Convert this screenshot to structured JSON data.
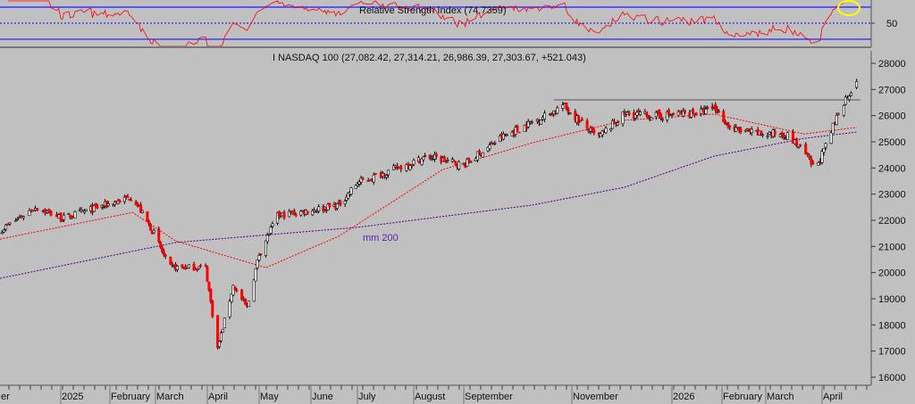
{
  "rsi_panel": {
    "title": "Relative Strength Index (74.7359)",
    "value": 74.7359,
    "levels": [
      70,
      50,
      30
    ],
    "axis_label": "50",
    "highlight_color": "#ffff00"
  },
  "chart_data": {
    "type": "candlestick",
    "title": "I NASDAQ 100 (27,082.42, 27,314.21, 26,986.39, 27,303.67, +521.043)",
    "last": {
      "open": 27082.42,
      "high": 27314.21,
      "low": 26986.39,
      "close": 27303.67,
      "change": 521.043
    },
    "ylim": [
      15700,
      28400
    ],
    "y_ticks": [
      "28000",
      "27000",
      "26000",
      "25000",
      "24000",
      "23000",
      "22000",
      "21000",
      "20000",
      "19000",
      "18000",
      "17000",
      "16000"
    ],
    "x_tick_labels": [
      "er",
      "2025",
      "February",
      "March",
      "April",
      "May",
      "June",
      "July",
      "August",
      "September",
      "November",
      "2026",
      "February",
      "March",
      "April"
    ],
    "grid": false,
    "colors": {
      "down": "#ff0000",
      "up": "#ffffff",
      "wick": "#000000",
      "ma_short": "#ff0000",
      "ma_long": "#4b0082",
      "rsi": "#ff0000",
      "levels": "#0000ff"
    },
    "close_path": [
      [
        "2024-12-01",
        21600
      ],
      [
        "2024-12-19",
        22500
      ],
      [
        "2025-01-02",
        22070
      ],
      [
        "2025-02-15",
        22900
      ],
      [
        "2025-03-01",
        21400
      ],
      [
        "2025-03-09",
        20200
      ],
      [
        "2025-03-31",
        20200
      ],
      [
        "2025-04-07",
        17100
      ],
      [
        "2025-04-16",
        19500
      ],
      [
        "2025-04-24",
        18650
      ],
      [
        "2025-05-01",
        20700
      ],
      [
        "2025-05-12",
        22170
      ],
      [
        "2025-06-19",
        22580
      ],
      [
        "2025-07-01",
        23430
      ],
      [
        "2025-08-10",
        24450
      ],
      [
        "2025-09-01",
        24100
      ],
      [
        "2025-09-22",
        25130
      ],
      [
        "2025-10-22",
        26160
      ],
      [
        "2025-10-27",
        26400
      ],
      [
        "2025-11-16",
        25130
      ],
      [
        "2025-12-02",
        26060
      ],
      [
        "2025-12-24",
        25990
      ],
      [
        "2026-01-22",
        26160
      ],
      [
        "2026-01-27",
        26330
      ],
      [
        "2026-02-07",
        25480
      ],
      [
        "2026-02-24",
        25300
      ],
      [
        "2026-03-12",
        25300
      ],
      [
        "2026-03-22",
        24620
      ],
      [
        "2026-03-28",
        23940
      ],
      [
        "2026-04-03",
        24800
      ],
      [
        "2026-04-11",
        26330
      ],
      [
        "2026-04-18",
        27080
      ],
      [
        "2026-04-20",
        27303.67
      ]
    ],
    "ma_short": [
      [
        "2024-12-01",
        21280
      ],
      [
        "2025-02-15",
        22300
      ],
      [
        "2025-03-13",
        21210
      ],
      [
        "2025-05-05",
        20190
      ],
      [
        "2025-06-19",
        21390
      ],
      [
        "2025-08-19",
        23940
      ],
      [
        "2025-10-10",
        24960
      ],
      [
        "2025-12-02",
        25820
      ],
      [
        "2026-01-27",
        26060
      ],
      [
        "2026-03-22",
        25300
      ],
      [
        "2026-04-20",
        25550
      ]
    ],
    "ma_long": {
      "label": "mm 200",
      "points": [
        [
          "2024-12-01",
          19780
        ],
        [
          "2025-03-13",
          21150
        ],
        [
          "2025-07-01",
          21730
        ],
        [
          "2025-10-10",
          22580
        ],
        [
          "2025-12-02",
          23260
        ],
        [
          "2026-01-27",
          24450
        ],
        [
          "2026-03-22",
          25130
        ],
        [
          "2026-04-20",
          25370
        ]
      ]
    },
    "resistance": {
      "from": "2025-10-22",
      "to": "2026-04-22",
      "value": 26600
    }
  }
}
